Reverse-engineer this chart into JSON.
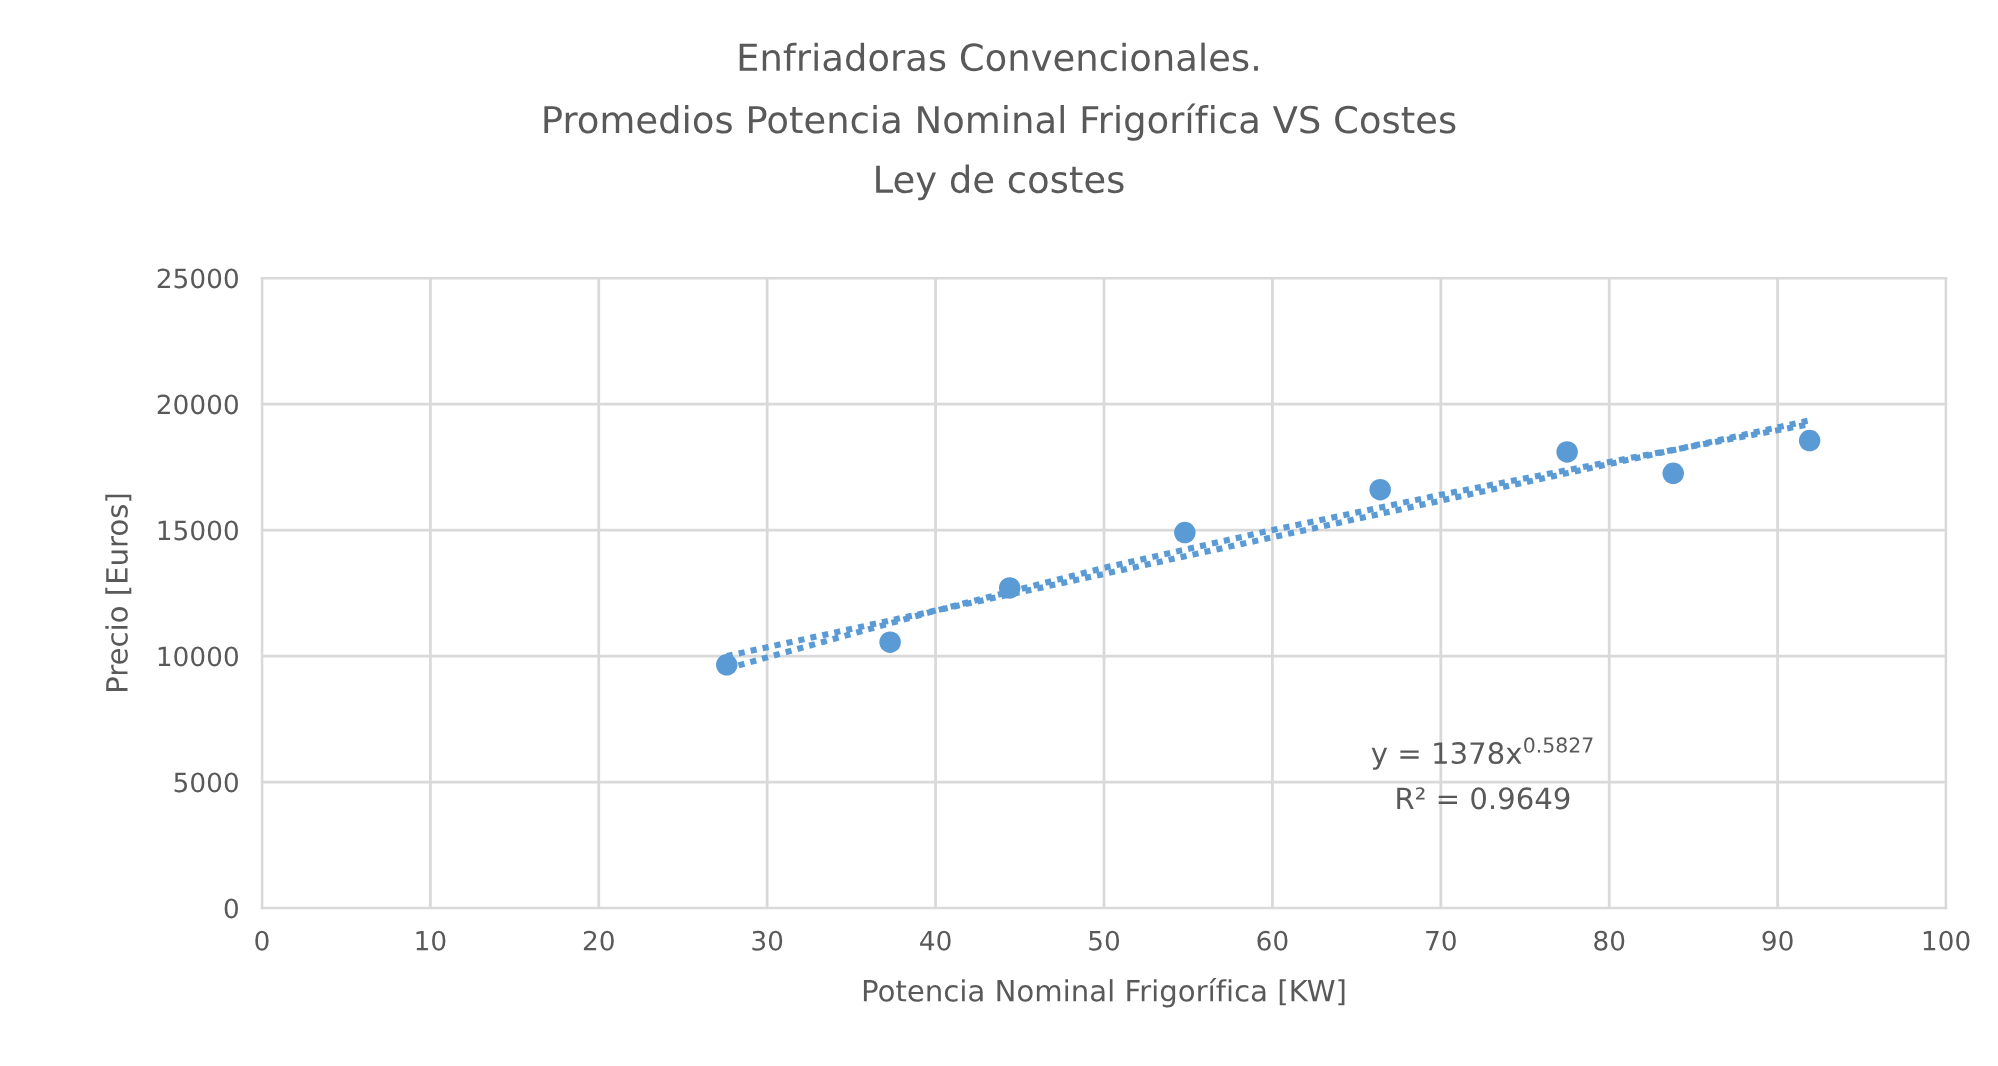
{
  "chart_data": {
    "type": "scatter",
    "title": "Enfriadoras Convencionales.\nPromedios Potencia Nominal Frigorífica VS Costes\nLey de costes",
    "xlabel": "Potencia Nominal Frigorífica [KW]",
    "ylabel": "Precio [Euros]",
    "series": [
      {
        "color": "#5b9bd5",
        "marker": "circle",
        "x": [
          27.6,
          37.3,
          44.4,
          54.8,
          66.4,
          77.5,
          83.8,
          91.9
        ],
        "values": [
          9650,
          10550,
          12700,
          14900,
          16600,
          18100,
          17250,
          18550
        ]
      },
      {
        "type": "line",
        "color": "#5b9bd5",
        "line_style": "dotted",
        "x": [
          27.6,
          40,
          50,
          60,
          70,
          80,
          91.9
        ],
        "values": [
          9500,
          11800,
          13500,
          15000,
          16400,
          17700,
          19200
        ]
      },
      {
        "type": "line",
        "color": "#5b9bd5",
        "line_style": "dotted",
        "x": [
          27.6,
          91.9
        ],
        "values": [
          10000,
          19350
        ]
      }
    ],
    "xlim": [
      0,
      100
    ],
    "xticks": [
      0,
      10,
      20,
      30,
      40,
      50,
      60,
      70,
      80,
      90,
      100
    ],
    "ylim": [
      0,
      25000
    ],
    "yticks": [
      0,
      5000,
      10000,
      15000,
      20000,
      25000
    ],
    "grid": true,
    "annotations": [
      "y = 1378x$^{0.5827}$",
      "R² = 0.9649"
    ]
  }
}
